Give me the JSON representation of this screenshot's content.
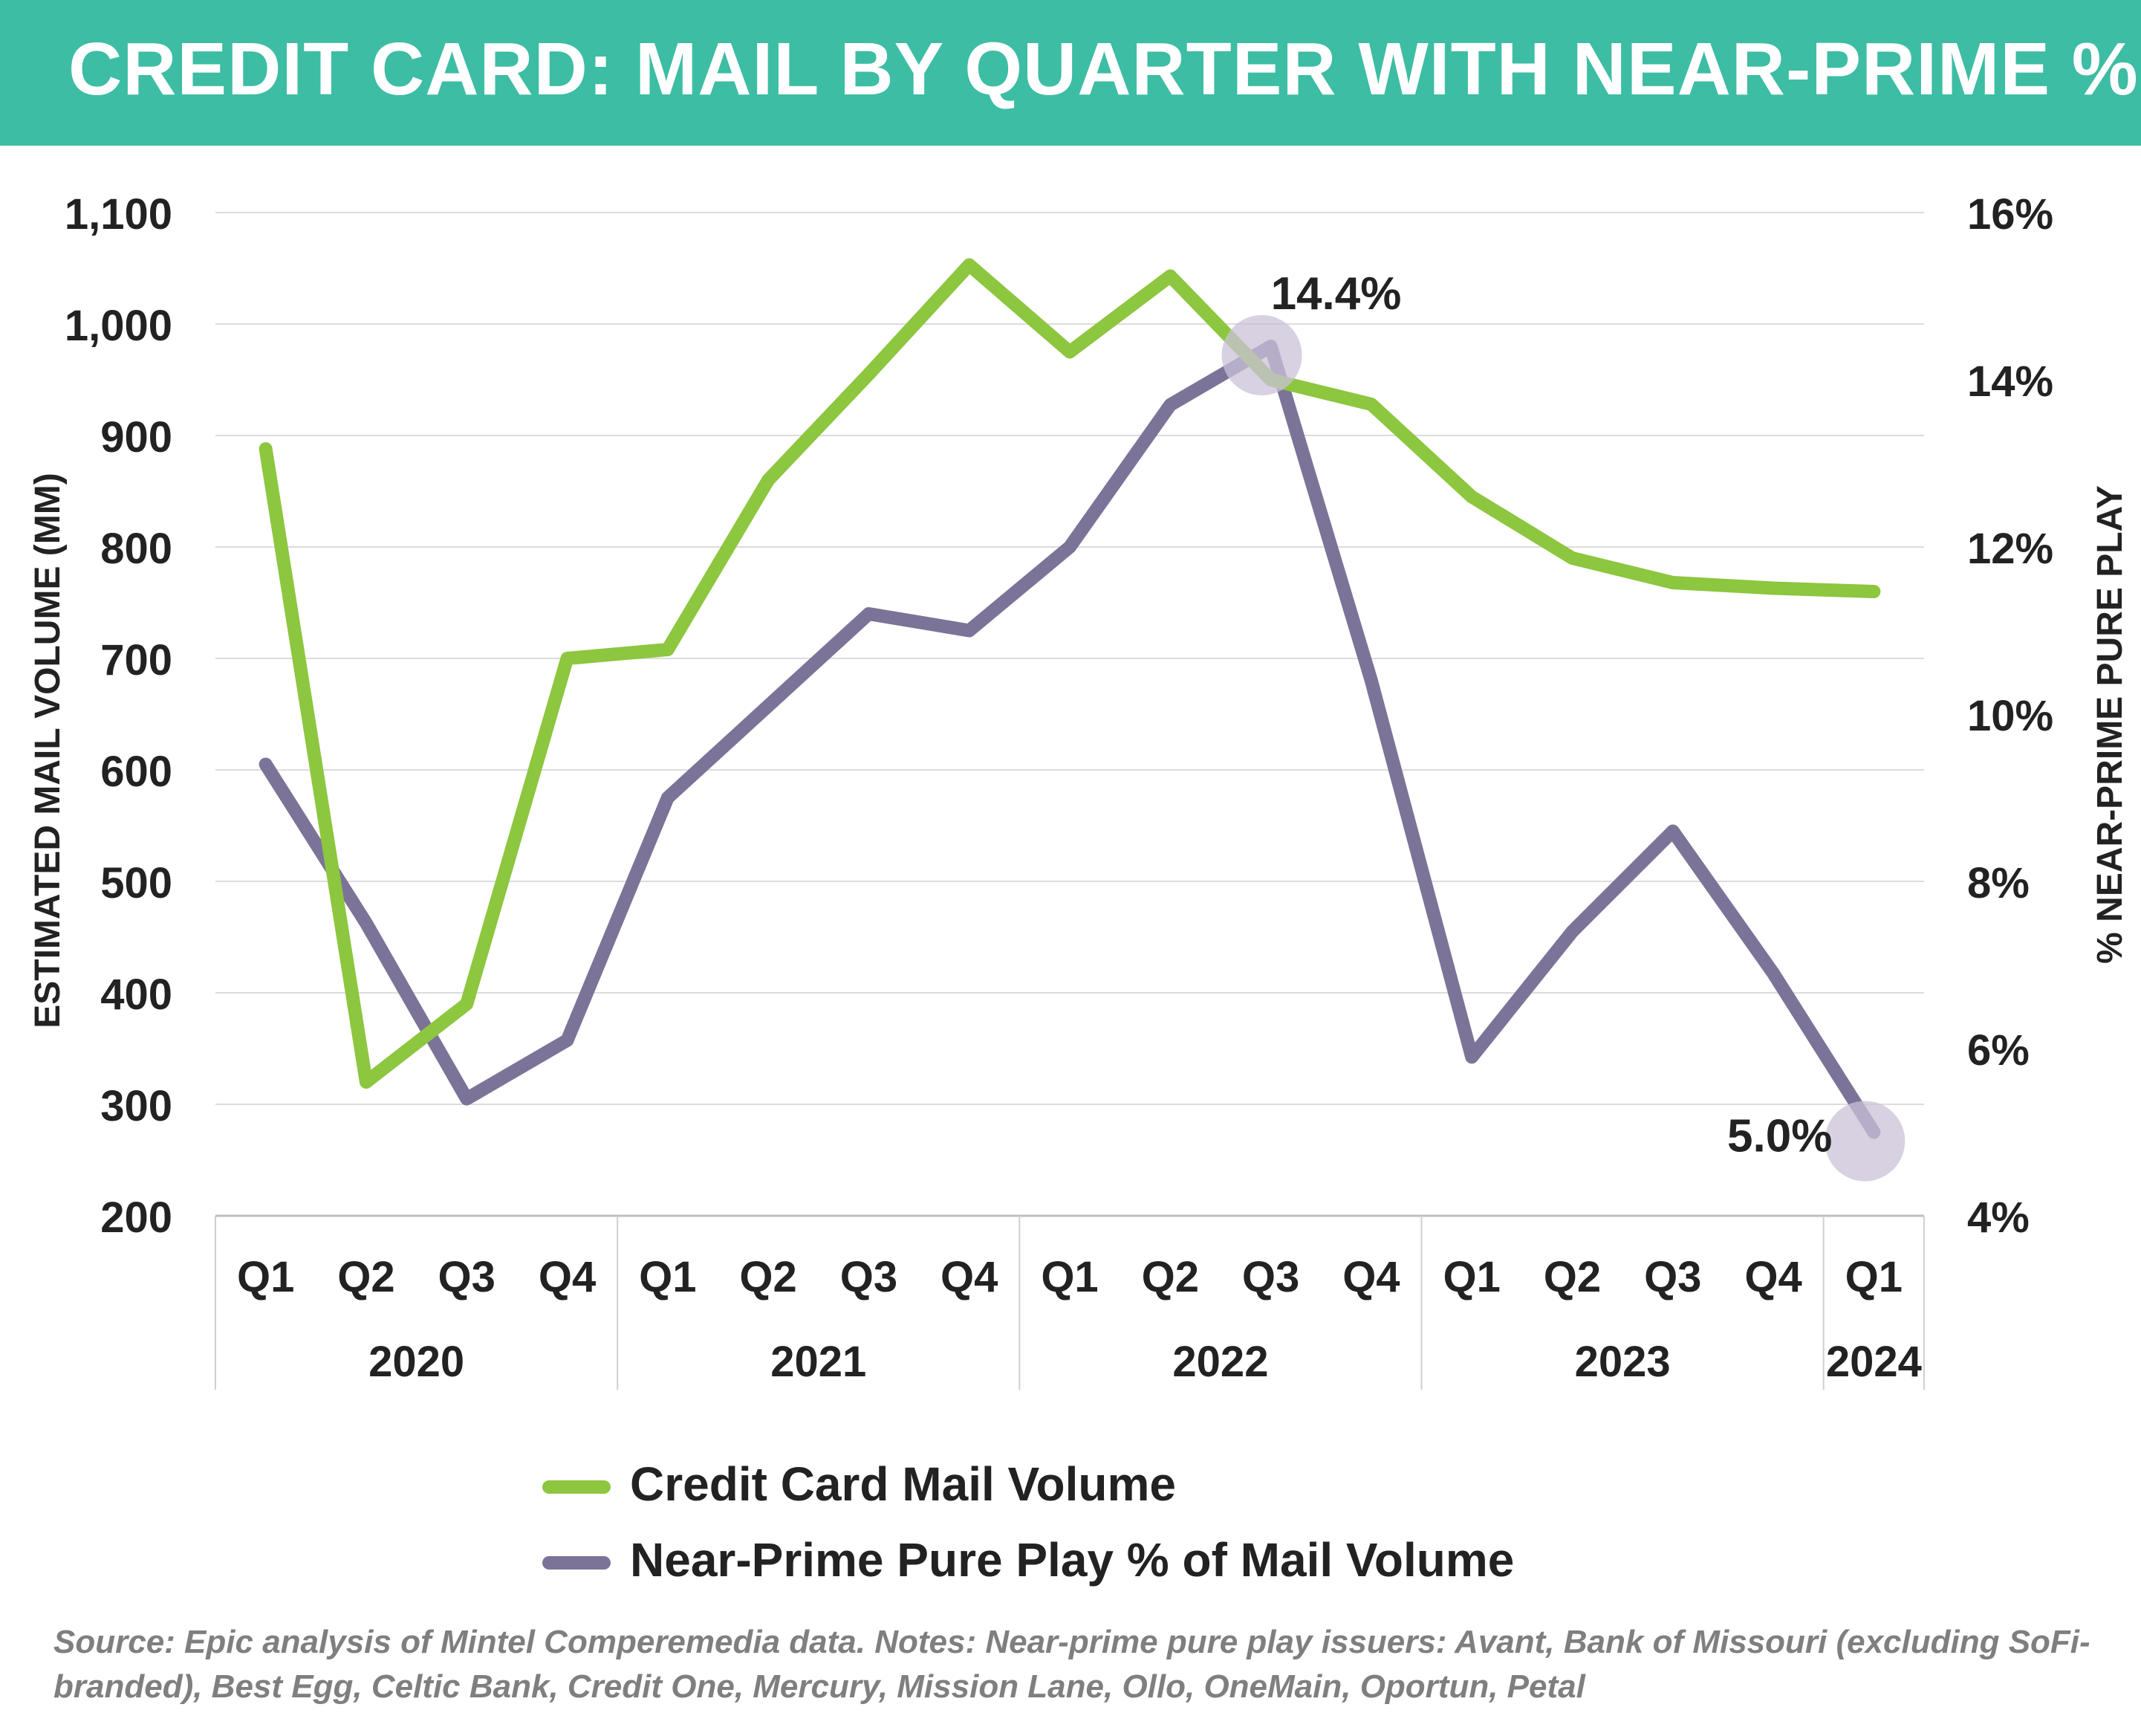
{
  "title": "CREDIT CARD: MAIL BY QUARTER WITH NEAR-PRIME %",
  "source_note": "Source: Epic analysis of Mintel Comperemedia data. Notes: Near-prime pure play issuers: Avant, Bank of Missouri (excluding SoFi-branded), Best Egg, Celtic Bank, Credit One, Mercury, Mission Lane, Ollo, OneMain, Oportun, Petal",
  "colors": {
    "title_bar": "#3dbda3",
    "mail_volume": "#8dc63f",
    "near_prime": "#7c7398",
    "highlight": "#c9c2d8"
  },
  "chart_data": {
    "type": "line",
    "title": "CREDIT CARD: MAIL BY QUARTER WITH NEAR-PRIME %",
    "categories": [
      "Q1",
      "Q2",
      "Q3",
      "Q4",
      "Q1",
      "Q2",
      "Q3",
      "Q4",
      "Q1",
      "Q2",
      "Q3",
      "Q4",
      "Q1",
      "Q2",
      "Q3",
      "Q4",
      "Q1"
    ],
    "year_groups": [
      {
        "label": "2020",
        "count": 4
      },
      {
        "label": "2021",
        "count": 4
      },
      {
        "label": "2022",
        "count": 4
      },
      {
        "label": "2023",
        "count": 4
      },
      {
        "label": "2024",
        "count": 1
      }
    ],
    "ylabel_left": "ESTIMATED MAIL VOLUME (MM)",
    "ylabel_right": "% NEAR-PRIME PURE PLAY",
    "ylim_left": [
      200,
      1100
    ],
    "ylim_right": [
      4,
      16
    ],
    "yticks_left": [
      "200",
      "300",
      "400",
      "500",
      "600",
      "700",
      "800",
      "900",
      "1,000",
      "1,100"
    ],
    "yticks_right": [
      "4%",
      "6%",
      "8%",
      "10%",
      "12%",
      "14%",
      "16%"
    ],
    "grid": true,
    "legend_position": "bottom",
    "series": [
      {
        "name": "Credit Card Mail Volume",
        "axis": "left",
        "values": [
          888,
          320,
          390,
          700,
          708,
          860,
          955,
          1053,
          975,
          1043,
          950,
          928,
          845,
          790,
          768,
          763,
          760
        ]
      },
      {
        "name": "Near-Prime Pure Play % of Mail Volume",
        "axis": "right",
        "values": [
          9.4,
          7.5,
          5.4,
          6.1,
          9.0,
          10.1,
          11.2,
          11.0,
          12.0,
          13.7,
          14.4,
          10.4,
          5.9,
          7.4,
          8.6,
          6.9,
          5.0
        ]
      }
    ],
    "annotations": [
      {
        "series": 1,
        "index": 10,
        "text": "14.4%"
      },
      {
        "series": 1,
        "index": 16,
        "text": "5.0%"
      }
    ]
  }
}
